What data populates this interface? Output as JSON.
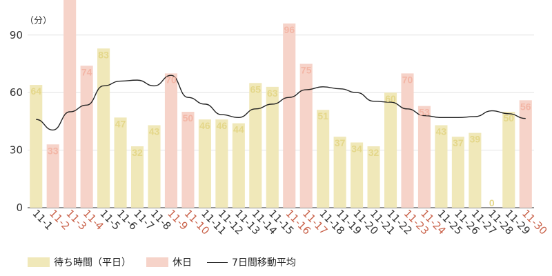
{
  "chart_data": {
    "type": "bar",
    "ylabel": "（分）",
    "ylim": [
      0,
      105
    ],
    "yticks": [
      "0",
      "30",
      "60",
      "90"
    ],
    "grid": true,
    "categories": [
      "11-1",
      "11-2",
      "11-3",
      "11-4",
      "11-5",
      "11-6",
      "11-7",
      "11-8",
      "11-9",
      "11-10",
      "11-11",
      "11-12",
      "11-13",
      "11-14",
      "11-15",
      "11-16",
      "11-17",
      "11-18",
      "11-19",
      "11-20",
      "11-21",
      "11-22",
      "11-23",
      "11-24",
      "11-25",
      "11-26",
      "11-27",
      "11-28",
      "11-29",
      "11-30"
    ],
    "values": [
      64,
      33,
      112,
      74,
      83,
      47,
      32,
      43,
      70,
      50,
      46,
      46,
      44,
      65,
      63,
      96,
      75,
      51,
      37,
      34,
      32,
      60,
      70,
      53,
      43,
      37,
      39,
      0,
      50,
      56
    ],
    "value_labels": [
      "64",
      "33",
      "",
      "74",
      "83",
      "47",
      "32",
      "43",
      "70",
      "50",
      "46",
      "46",
      "44",
      "65",
      "63",
      "96",
      "75",
      "51",
      "37",
      "34",
      "32",
      "60",
      "70",
      "53",
      "43",
      "37",
      "39",
      "0",
      "50",
      "56"
    ],
    "holiday": [
      false,
      true,
      true,
      true,
      false,
      false,
      false,
      false,
      true,
      true,
      false,
      false,
      false,
      false,
      false,
      true,
      true,
      false,
      false,
      false,
      false,
      false,
      true,
      true,
      false,
      false,
      false,
      false,
      false,
      true
    ],
    "moving_average": [
      46,
      40.5,
      50,
      53.5,
      63.5,
      66,
      66.5,
      63.5,
      69,
      57.5,
      54,
      48.5,
      47,
      51.5,
      54,
      57.5,
      61.5,
      63,
      62,
      60,
      55.5,
      55,
      51.5,
      48,
      47,
      47,
      47.5,
      50.5,
      49,
      46.5
    ],
    "colors": {
      "weekday": "#f0e8b9",
      "holiday": "#f6d3c9",
      "holiday_label": "#c9624a",
      "weekday_label": "#333333",
      "line": "#222222",
      "grid": "#e2e2e2",
      "axis": "#555555"
    },
    "legend": {
      "weekday": "待ち時間（平日）",
      "holiday": "休日",
      "line": "7日間移動平均"
    }
  }
}
